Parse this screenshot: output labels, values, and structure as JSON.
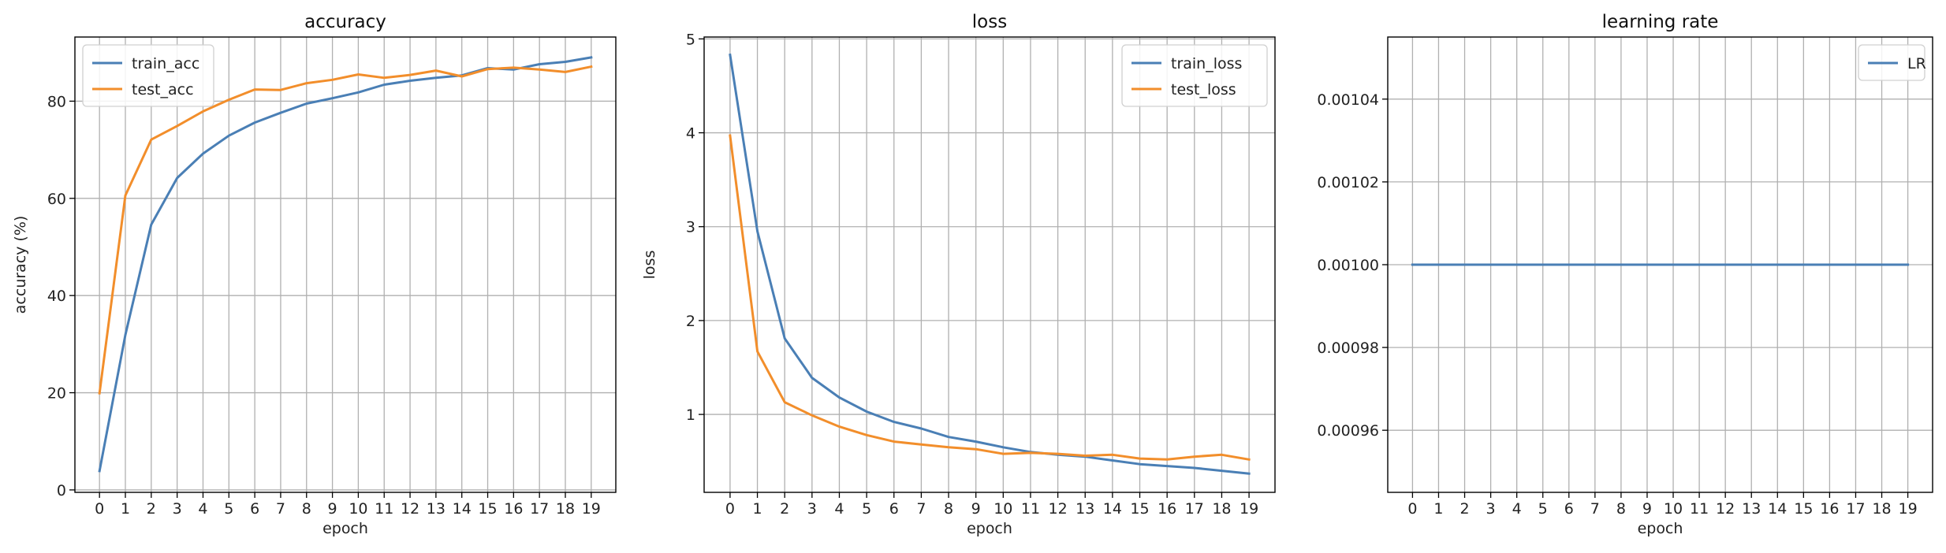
{
  "chart_data": [
    {
      "type": "line",
      "title": "accuracy",
      "xlabel": "epoch",
      "ylabel": "accuracy (%)",
      "x": [
        0,
        1,
        2,
        3,
        4,
        5,
        6,
        7,
        8,
        9,
        10,
        11,
        12,
        13,
        14,
        15,
        16,
        17,
        18,
        19
      ],
      "xlim": [
        -0.95,
        19.95
      ],
      "ylim": [
        -0.5,
        93.2
      ],
      "yticks": [
        0,
        20,
        40,
        60,
        80
      ],
      "ytick_labels": [
        "0",
        "20",
        "40",
        "60",
        "80"
      ],
      "grid": true,
      "legend_position": "top-left",
      "series": [
        {
          "name": "train_acc",
          "color": "#4a7fb5",
          "values": [
            3.9,
            31.9,
            54.6,
            64.2,
            69.2,
            72.9,
            75.6,
            77.6,
            79.5,
            80.6,
            81.8,
            83.4,
            84.2,
            84.8,
            85.3,
            86.8,
            86.5,
            87.6,
            88.1,
            89.0
          ]
        },
        {
          "name": "test_acc",
          "color": "#f28e2b",
          "values": [
            19.9,
            60.6,
            72.1,
            74.9,
            77.9,
            80.3,
            82.4,
            82.3,
            83.7,
            84.4,
            85.5,
            84.8,
            85.4,
            86.3,
            85.1,
            86.6,
            86.9,
            86.5,
            86.0,
            87.1
          ]
        }
      ]
    },
    {
      "type": "line",
      "title": "loss",
      "xlabel": "epoch",
      "ylabel": "loss",
      "x": [
        0,
        1,
        2,
        3,
        4,
        5,
        6,
        7,
        8,
        9,
        10,
        11,
        12,
        13,
        14,
        15,
        16,
        17,
        18,
        19
      ],
      "xlim": [
        -0.95,
        19.95
      ],
      "ylim": [
        0.17,
        5.02
      ],
      "yticks": [
        1,
        2,
        3,
        4,
        5
      ],
      "ytick_labels": [
        "1",
        "2",
        "3",
        "4",
        "5"
      ],
      "grid": true,
      "legend_position": "top-right",
      "series": [
        {
          "name": "train_loss",
          "color": "#4a7fb5",
          "values": [
            4.83,
            2.95,
            1.81,
            1.39,
            1.18,
            1.03,
            0.92,
            0.85,
            0.76,
            0.71,
            0.65,
            0.6,
            0.57,
            0.55,
            0.51,
            0.47,
            0.45,
            0.43,
            0.4,
            0.37
          ]
        },
        {
          "name": "test_loss",
          "color": "#f28e2b",
          "values": [
            3.97,
            1.67,
            1.13,
            0.99,
            0.87,
            0.78,
            0.71,
            0.68,
            0.65,
            0.63,
            0.58,
            0.59,
            0.58,
            0.56,
            0.57,
            0.53,
            0.52,
            0.55,
            0.57,
            0.52
          ]
        }
      ]
    },
    {
      "type": "line",
      "title": "learning rate",
      "xlabel": "epoch",
      "ylabel": "",
      "x": [
        0,
        1,
        2,
        3,
        4,
        5,
        6,
        7,
        8,
        9,
        10,
        11,
        12,
        13,
        14,
        15,
        16,
        17,
        18,
        19
      ],
      "xlim": [
        -0.95,
        19.95
      ],
      "ylim": [
        0.000945,
        0.001055
      ],
      "yticks": [
        0.00096,
        0.00098,
        0.001,
        0.00102,
        0.00104
      ],
      "ytick_labels": [
        "0.00096",
        "0.00098",
        "0.00100",
        "0.00102",
        "0.00104"
      ],
      "grid": true,
      "legend_position": "top-right",
      "series": [
        {
          "name": "LR",
          "color": "#4a7fb5",
          "values": [
            0.001,
            0.001,
            0.001,
            0.001,
            0.001,
            0.001,
            0.001,
            0.001,
            0.001,
            0.001,
            0.001,
            0.001,
            0.001,
            0.001,
            0.001,
            0.001,
            0.001,
            0.001,
            0.001,
            0.001
          ]
        }
      ]
    }
  ]
}
